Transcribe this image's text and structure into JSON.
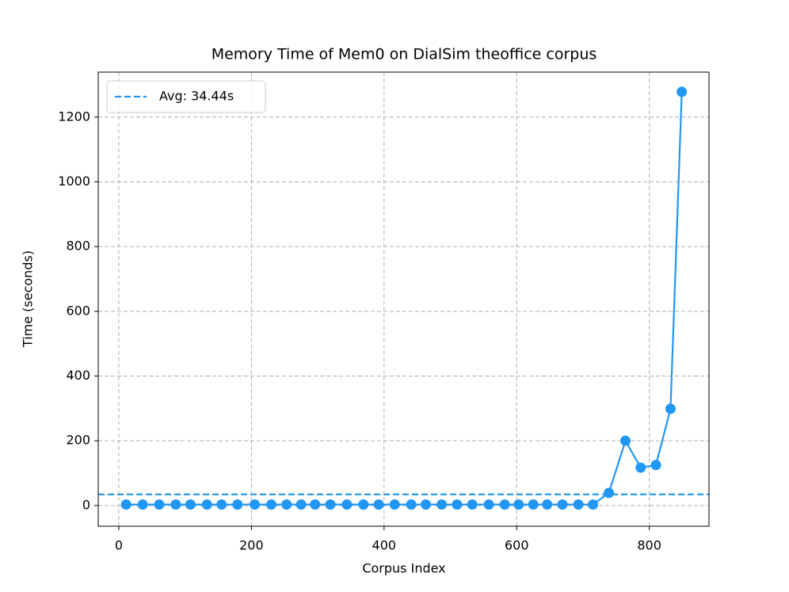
{
  "chart_data": {
    "type": "line",
    "title": "Memory Time of Mem0 on DialSim theoffice corpus",
    "x_label": "Corpus Index",
    "y_label": "Time (seconds)",
    "x": [
      11,
      36,
      61,
      86,
      108,
      133,
      155,
      179,
      205,
      230,
      253,
      275,
      296,
      319,
      344,
      369,
      392,
      416,
      441,
      463,
      487,
      510,
      533,
      558,
      582,
      603,
      625,
      646,
      669,
      693,
      715,
      739,
      764,
      787,
      810,
      832,
      849
    ],
    "values": [
      3,
      3,
      3,
      3,
      3,
      3,
      3,
      3,
      3,
      3,
      3,
      3,
      3,
      3,
      3,
      3,
      3,
      3,
      3,
      3,
      3,
      3,
      3,
      3,
      3,
      3,
      3,
      3,
      3,
      3,
      3,
      39,
      200,
      117,
      125,
      299,
      1278
    ],
    "color": "#2196f3",
    "avg_line": {
      "value": 34.44,
      "label": "Avg: 34.44s",
      "color": "#2196f3"
    },
    "legend": "upper left",
    "xlim": [
      -31,
      890
    ],
    "ylim": [
      -64,
      1339
    ],
    "xticks": [
      0,
      200,
      400,
      600,
      800
    ],
    "yticks": [
      0,
      200,
      400,
      600,
      800,
      1000,
      1200
    ],
    "grid": true
  }
}
